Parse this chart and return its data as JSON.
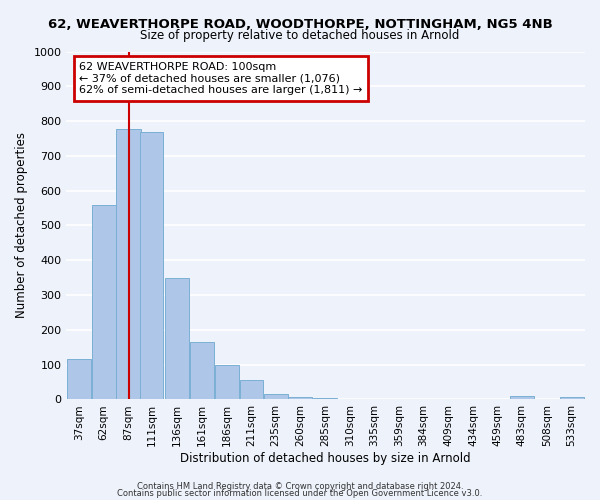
{
  "title": "62, WEAVERTHORPE ROAD, WOODTHORPE, NOTTINGHAM, NG5 4NB",
  "subtitle": "Size of property relative to detached houses in Arnold",
  "xlabel": "Distribution of detached houses by size in Arnold",
  "ylabel": "Number of detached properties",
  "bar_labels": [
    "37sqm",
    "62sqm",
    "87sqm",
    "111sqm",
    "136sqm",
    "161sqm",
    "186sqm",
    "211sqm",
    "235sqm",
    "260sqm",
    "285sqm",
    "310sqm",
    "335sqm",
    "359sqm",
    "384sqm",
    "409sqm",
    "434sqm",
    "459sqm",
    "483sqm",
    "508sqm",
    "533sqm"
  ],
  "bar_heights": [
    115,
    558,
    778,
    770,
    348,
    165,
    98,
    55,
    15,
    8,
    5,
    2,
    0,
    0,
    0,
    0,
    0,
    0,
    10,
    0,
    8
  ],
  "bar_left_edges": [
    37,
    62,
    87,
    111,
    136,
    161,
    186,
    211,
    235,
    260,
    285,
    310,
    335,
    359,
    384,
    409,
    434,
    459,
    483,
    508,
    533
  ],
  "bar_widths": [
    25,
    25,
    25,
    24,
    25,
    25,
    25,
    24,
    25,
    25,
    25,
    25,
    24,
    25,
    25,
    25,
    25,
    24,
    25,
    25,
    25
  ],
  "bar_color": "#aec6e8",
  "bar_edgecolor": "#7aafd4",
  "vline_x": 100,
  "vline_color": "#cc0000",
  "annotation_title": "62 WEAVERTHORPE ROAD: 100sqm",
  "annotation_line1": "← 37% of detached houses are smaller (1,076)",
  "annotation_line2": "62% of semi-detached houses are larger (1,811) →",
  "annotation_box_edgecolor": "#cc0000",
  "ylim": [
    0,
    1000
  ],
  "yticks": [
    0,
    100,
    200,
    300,
    400,
    500,
    600,
    700,
    800,
    900,
    1000
  ],
  "background_color": "#eef2fb",
  "grid_color": "#ffffff",
  "footer1": "Contains HM Land Registry data © Crown copyright and database right 2024.",
  "footer2": "Contains public sector information licensed under the Open Government Licence v3.0."
}
